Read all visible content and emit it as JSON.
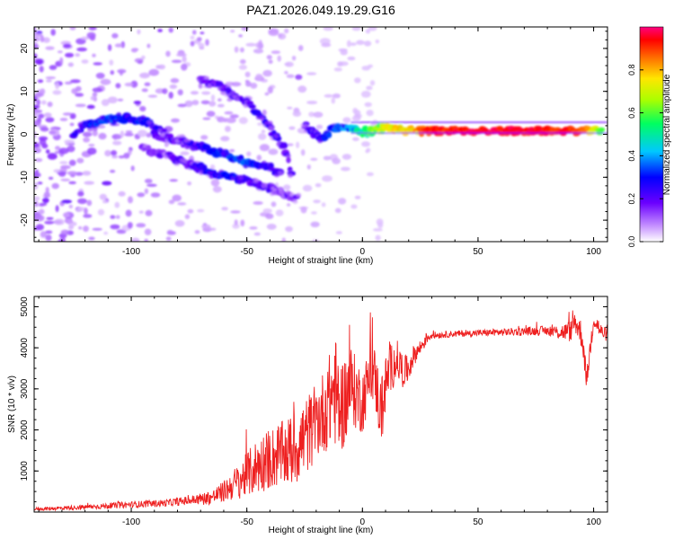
{
  "title": "PAZ1.2026.049.19.29.G16",
  "chart_data": [
    {
      "type": "heatmap",
      "xlabel": "Height of straight line (km)",
      "ylabel": "Frequency (Hz)",
      "xlim": [
        -142,
        106
      ],
      "ylim": [
        -25,
        25
      ],
      "xticks": [
        -100,
        -50,
        0,
        50,
        100
      ],
      "yticks": [
        -20,
        -10,
        0,
        10,
        20
      ],
      "colorbar": {
        "label": "Normalized spectral amplitude",
        "range": [
          0,
          1
        ],
        "ticks": [
          "0.0",
          "0.2",
          "0.4",
          "0.6",
          "0.8"
        ],
        "tick_values": [
          0,
          0.2,
          0.4,
          0.6,
          0.8
        ]
      },
      "ridges": [
        {
          "name": "main",
          "points": [
            [
              -125,
              0,
              0.22
            ],
            [
              -118,
              2.5,
              0.3
            ],
            [
              -110,
              3.5,
              0.35
            ],
            [
              -100,
              3.8,
              0.3
            ],
            [
              -92,
              2.5,
              0.28
            ],
            [
              -85,
              0,
              0.22
            ]
          ]
        },
        {
          "name": "descending-lower",
          "points": [
            [
              -95,
              -3,
              0.15
            ],
            [
              -85,
              -5,
              0.18
            ],
            [
              -75,
              -7,
              0.2
            ],
            [
              -65,
              -9,
              0.3
            ],
            [
              -55,
              -10,
              0.28
            ],
            [
              -48,
              -11,
              0.2
            ],
            [
              -38,
              -13,
              0.18
            ],
            [
              -28,
              -15,
              0.15
            ]
          ]
        },
        {
          "name": "descending-mid",
          "points": [
            [
              -90,
              0,
              0.18
            ],
            [
              -80,
              -1.5,
              0.2
            ],
            [
              -70,
              -3,
              0.25
            ],
            [
              -60,
              -4.5,
              0.3
            ],
            [
              -50,
              -6.5,
              0.35
            ],
            [
              -42,
              -7.5,
              0.25
            ],
            [
              -35,
              -9,
              0.2
            ]
          ]
        },
        {
          "name": "upper-arc",
          "points": [
            [
              -70,
              13,
              0.18
            ],
            [
              -60,
              10.5,
              0.2
            ],
            [
              -50,
              7.5,
              0.22
            ],
            [
              -42,
              3,
              0.25
            ],
            [
              -34,
              -3,
              0.2
            ],
            [
              -30,
              -10,
              0.18
            ]
          ]
        },
        {
          "name": "converging",
          "points": [
            [
              -25,
              2,
              0.2
            ],
            [
              -18,
              -1,
              0.28
            ],
            [
              -12,
              1.5,
              0.32
            ],
            [
              -6,
              2,
              0.4
            ],
            [
              0,
              0.5,
              0.55
            ],
            [
              5,
              1,
              0.65
            ],
            [
              10,
              1.5,
              0.72
            ],
            [
              18,
              1,
              0.8
            ],
            [
              30,
              0.8,
              0.85
            ]
          ]
        },
        {
          "name": "carrier",
          "points": [
            [
              25,
              0.8,
              0.9
            ],
            [
              50,
              0.8,
              0.95
            ],
            [
              75,
              0.8,
              0.95
            ],
            [
              95,
              0.8,
              0.9
            ],
            [
              104,
              0.8,
              0.6
            ]
          ]
        }
      ]
    },
    {
      "type": "line",
      "xlabel": "Height of straight line (km)",
      "ylabel": "SNR (10 * v/v)",
      "xlim": [
        -142,
        106
      ],
      "ylim": [
        0,
        5250
      ],
      "xticks": [
        -100,
        -50,
        0,
        50,
        100
      ],
      "yticks": [
        1000,
        2000,
        3000,
        4000,
        5000
      ],
      "color": "#ee2020",
      "series": [
        {
          "name": "SNR",
          "x": [
            -142,
            -120,
            -100,
            -85,
            -75,
            -65,
            -60,
            -55,
            -50,
            -45,
            -40,
            -35,
            -30,
            -25,
            -20,
            -15,
            -12,
            -10,
            -7,
            -5,
            -3,
            0,
            3,
            5,
            8,
            10,
            12,
            15,
            18,
            20,
            22,
            25,
            28,
            30,
            35,
            40,
            50,
            60,
            70,
            80,
            85,
            90,
            92,
            95,
            97,
            100,
            103,
            106
          ],
          "values": [
            70,
            120,
            180,
            220,
            280,
            360,
            500,
            700,
            900,
            1150,
            1300,
            1400,
            1500,
            1800,
            2200,
            2600,
            3000,
            2500,
            2800,
            3100,
            2900,
            2700,
            3300,
            3400,
            2400,
            3100,
            3500,
            3700,
            3400,
            3500,
            3800,
            4000,
            4250,
            4300,
            4320,
            4340,
            4360,
            4380,
            4400,
            4420,
            4380,
            4400,
            4650,
            4300,
            3200,
            4750,
            4400,
            4300
          ],
          "noise_amplitude": [
            40,
            60,
            80,
            90,
            110,
            180,
            260,
            400,
            550,
            700,
            750,
            800,
            900,
            1000,
            900,
            1100,
            1400,
            1200,
            1100,
            1000,
            900,
            800,
            700,
            700,
            900,
            700,
            600,
            500,
            400,
            350,
            250,
            200,
            150,
            90,
            80,
            80,
            80,
            90,
            100,
            120,
            180,
            260,
            300,
            350,
            250,
            300,
            200,
            150
          ]
        }
      ]
    }
  ]
}
